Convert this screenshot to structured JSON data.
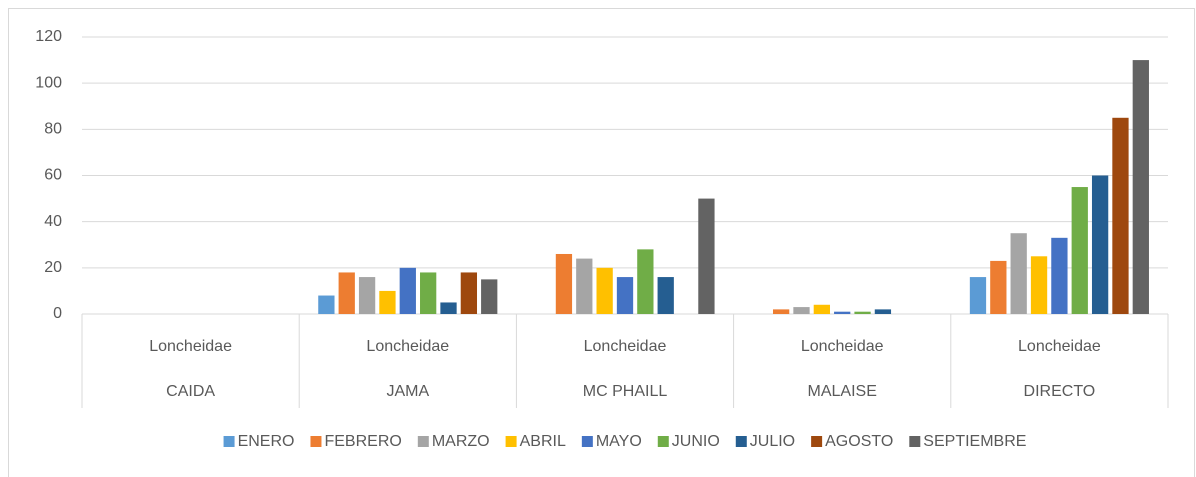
{
  "chart_data": {
    "type": "bar",
    "categories": [
      "CAIDA",
      "JAMA",
      "MC PHAILL",
      "MALAISE",
      "DIRECTO"
    ],
    "subcategories": [
      "Loncheidae",
      "Loncheidae",
      "Loncheidae",
      "Loncheidae",
      "Loncheidae"
    ],
    "series": [
      {
        "name": "ENERO",
        "color": "#5b9bd5",
        "values": [
          0,
          8,
          0,
          0,
          16
        ]
      },
      {
        "name": "FEBRERO",
        "color": "#ed7d31",
        "values": [
          0,
          18,
          26,
          2,
          23
        ]
      },
      {
        "name": "MARZO",
        "color": "#a5a5a5",
        "values": [
          0,
          16,
          24,
          3,
          35
        ]
      },
      {
        "name": "ABRIL",
        "color": "#ffc000",
        "values": [
          0,
          10,
          20,
          4,
          25
        ]
      },
      {
        "name": "MAYO",
        "color": "#4472c4",
        "values": [
          0,
          20,
          16,
          1,
          33
        ]
      },
      {
        "name": "JUNIO",
        "color": "#70ad47",
        "values": [
          0,
          18,
          28,
          1,
          55
        ]
      },
      {
        "name": "JULIO",
        "color": "#255e91",
        "values": [
          0,
          5,
          16,
          2,
          60
        ]
      },
      {
        "name": "AGOSTO",
        "color": "#9e480e",
        "values": [
          0,
          18,
          0,
          0,
          85
        ]
      },
      {
        "name": "SEPTIEMBRE",
        "color": "#636363",
        "values": [
          0,
          15,
          50,
          0,
          110
        ]
      }
    ],
    "ylim": [
      0,
      120
    ],
    "yticks": [
      0,
      20,
      40,
      60,
      80,
      100,
      120
    ],
    "grid": true,
    "legend": "bottom"
  }
}
